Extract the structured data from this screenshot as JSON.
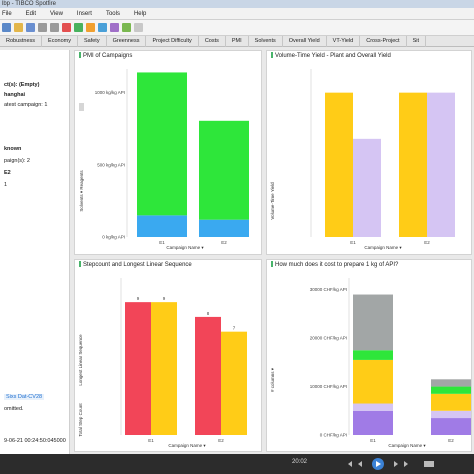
{
  "window": {
    "title": "lbp - TIBCO Spotfire"
  },
  "menu": [
    "File",
    "Edit",
    "View",
    "Insert",
    "Tools",
    "Help"
  ],
  "tabs": [
    "Robustness",
    "Economy",
    "Safety",
    "Greenness",
    "Project Difficulty",
    "Costs",
    "PMI",
    "Solvents",
    "Overall Yield",
    "VT-Yield",
    "Cross-Project",
    "Sit"
  ],
  "sidebar": {
    "lines": [
      "ct(s): (Empty)",
      "hanghai",
      "atest campaign: 1",
      "known",
      "paign(s): 2",
      "E2",
      "1",
      "Sixs Dat-CV28",
      "omitted.",
      "9-06-21 00:24:50:045000"
    ]
  },
  "colors": {
    "green": "#2ee63a",
    "cyan": "#3aa9f0",
    "yellow": "#ffcc17",
    "lavender": "#d5c5f3",
    "red": "#f24558",
    "gray": "#a2a6a6",
    "purple": "#a07be6"
  },
  "status": {
    "time": "20:02"
  },
  "charts": {
    "pmi": {
      "title": "PMI of Campaigns",
      "axis_title": "Solvents ▾ Reagents",
      "xlabel": "Campaign Name ▾",
      "chart_data": {
        "type": "bar",
        "categories": [
          "E1",
          "E2"
        ],
        "series": [
          {
            "name": "Reagents",
            "values": [
              150,
              120
            ]
          },
          {
            "name": "Solvents",
            "values": [
              990,
              685
            ]
          }
        ],
        "yticks": [
          "0 kg/kg API",
          "500 kg/kg API",
          "1000 kg/kg API"
        ],
        "ylim": [
          0,
          1150
        ]
      }
    },
    "yield": {
      "title": "Volume-Time Yield - Plant and Overall Yield",
      "axis_title": "Volume-Time Yield",
      "xlabel": "Campaign Name ▾",
      "chart_data": {
        "type": "bar",
        "categories": [
          "E1",
          "E2"
        ],
        "series": [
          {
            "values": [
              1.0,
              1.0
            ]
          },
          {
            "values": [
              0.68,
              1.0
            ]
          }
        ],
        "ylim": [
          0,
          1.15
        ]
      }
    },
    "steps": {
      "title": "Stepcount and Longest Linear Sequence",
      "axis_title": "Longest Linear Sequence",
      "axis_title2": "Total Step Count",
      "xlabel": "Campaign Name ▾",
      "chart_data": {
        "type": "bar",
        "categories": [
          "E1",
          "E2"
        ],
        "series": [
          {
            "values": [
              9,
              8
            ]
          },
          {
            "values": [
              9,
              7
            ]
          }
        ],
        "ylim": [
          0,
          10.5
        ]
      }
    },
    "cost": {
      "title": "How much does it cost to prepare 1 kg of API?",
      "axis_title": "# columns ▾",
      "xlabel": "Campaign Name ▾",
      "chart_data": {
        "type": "bar",
        "categories": [
          "E1",
          "E2"
        ],
        "stacked": true,
        "series_colors": [
          "purple",
          "lavender",
          "yellow",
          "green",
          "gray"
        ],
        "series": [
          {
            "values": [
              5000,
              3500
            ]
          },
          {
            "values": [
              1500,
              1500
            ]
          },
          {
            "values": [
              9000,
              3500
            ]
          },
          {
            "values": [
              2000,
              1500
            ]
          },
          {
            "values": [
              11500,
              1500
            ]
          }
        ],
        "yticks": [
          "0 CHF/kg API",
          "10000 CHF/kg API",
          "20000 CHF/kg API",
          "30000 CHF/kg API"
        ],
        "ylim": [
          0,
          32000
        ]
      }
    }
  }
}
